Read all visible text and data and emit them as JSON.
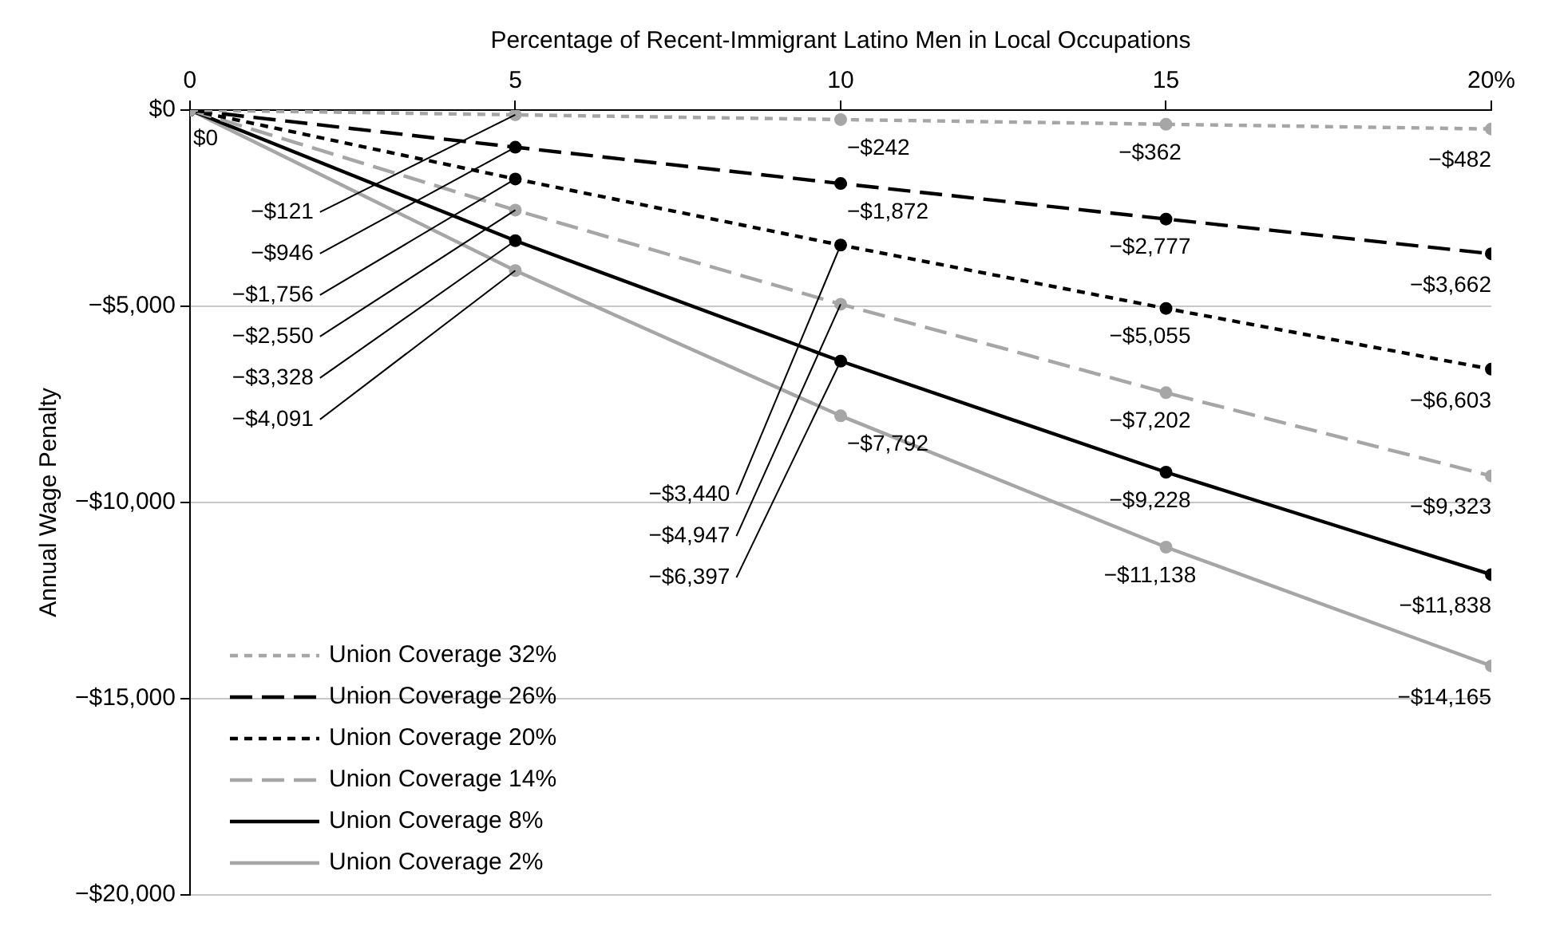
{
  "chart_data": {
    "type": "line",
    "xlabel": "Percentage of Recent-Immigrant Latino Men in Local Occupations",
    "ylabel": "Annual Wage Penalty",
    "x": [
      0,
      5,
      10,
      15,
      20
    ],
    "xlim": [
      0,
      20
    ],
    "xticks": [
      0,
      5,
      10,
      15,
      {
        "value": 20,
        "label": "20%"
      }
    ],
    "ylim": [
      -20000,
      0
    ],
    "yticks": [
      {
        "value": 0,
        "label": "$0"
      },
      {
        "value": -5000,
        "label": "−$5,000"
      },
      {
        "value": -10000,
        "label": "−$10,000"
      },
      {
        "value": -15000,
        "label": "−$15,000"
      },
      {
        "value": -20000,
        "label": "−$20,000"
      }
    ],
    "grid": "y",
    "legend": "bottom left",
    "marker": "circle",
    "series": [
      {
        "name": "Union Coverage 32%",
        "color": "#a6a6a6",
        "line_style": "dotted",
        "values": [
          0,
          -121,
          -242,
          -362,
          -482
        ],
        "value_labels": [
          "$0",
          "−$121",
          "−$242",
          "−$362",
          "−$482"
        ]
      },
      {
        "name": "Union Coverage 26%",
        "color": "#000000",
        "line_style": "dashed",
        "values": [
          0,
          -946,
          -1872,
          -2777,
          -3662
        ],
        "value_labels": [
          null,
          "−$946",
          "−$1,872",
          "−$2,777",
          "−$3,662"
        ]
      },
      {
        "name": "Union Coverage 20%",
        "color": "#000000",
        "line_style": "dotted",
        "values": [
          0,
          -1756,
          -3440,
          -5055,
          -6603
        ],
        "value_labels": [
          null,
          "−$1,756",
          "−$3,440",
          "−$5,055",
          "−$6,603"
        ]
      },
      {
        "name": "Union Coverage 14%",
        "color": "#a6a6a6",
        "line_style": "dashed",
        "values": [
          0,
          -2550,
          -4947,
          -7202,
          -9323
        ],
        "value_labels": [
          null,
          "−$2,550",
          "−$4,947",
          "−$7,202",
          "−$9,323"
        ]
      },
      {
        "name": "Union Coverage 8%",
        "color": "#000000",
        "line_style": "solid",
        "values": [
          0,
          -3328,
          -6397,
          -9228,
          -11838
        ],
        "value_labels": [
          null,
          "−$3,328",
          "−$6,397",
          "−$9,228",
          "−$11,838"
        ]
      },
      {
        "name": "Union Coverage 2%",
        "color": "#a6a6a6",
        "line_style": "solid",
        "values": [
          0,
          -4091,
          -7792,
          -11138,
          -14165
        ],
        "value_labels": [
          null,
          "−$4,091",
          "−$7,792",
          "−$11,138",
          "−$14,165"
        ]
      }
    ]
  }
}
